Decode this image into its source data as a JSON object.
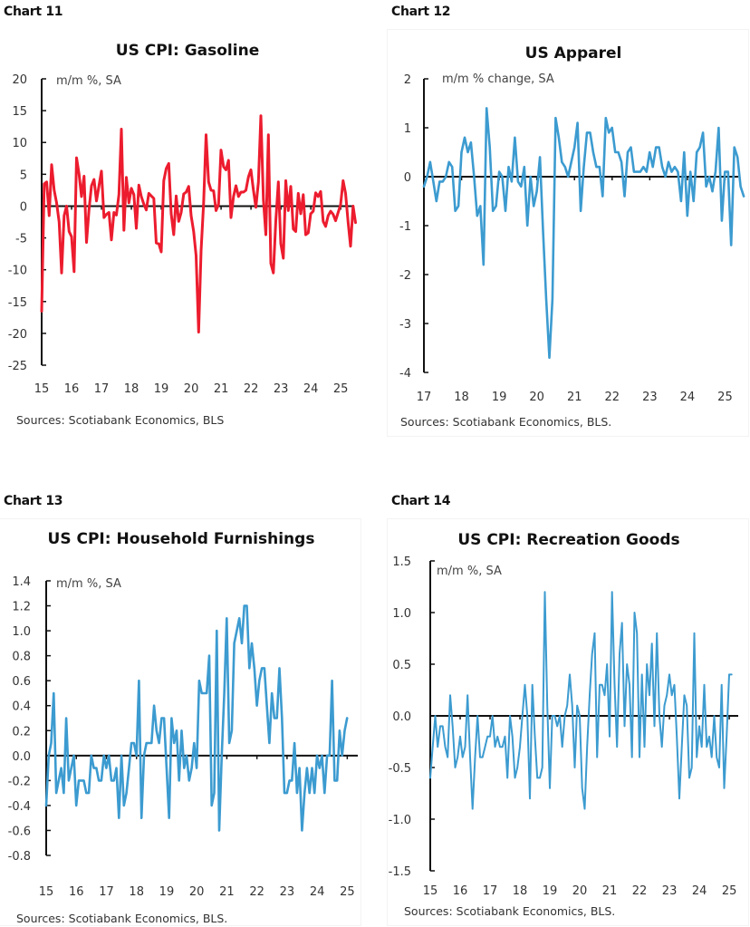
{
  "chart_data": [
    {
      "id": "chart11",
      "label": "Chart 11",
      "type": "line",
      "title": "US CPI: Gasoline",
      "unit_label": "m/m %, SA",
      "source": "Sources: Scotiabank Economics, BLS",
      "color": "#EC1C2E",
      "x_start": 2015.0,
      "x_step": 0.0833,
      "xlim": [
        2015,
        2025.45
      ],
      "x_ticks": [
        "15",
        "16",
        "17",
        "18",
        "19",
        "20",
        "21",
        "22",
        "23",
        "24",
        "25"
      ],
      "ylim": [
        -25,
        20
      ],
      "y_ticks": [
        "20",
        "15",
        "10",
        "5",
        "0",
        "-5",
        "-10",
        "-15",
        "-20",
        "-25"
      ],
      "y_tick_values": [
        20,
        15,
        10,
        5,
        0,
        -5,
        -10,
        -15,
        -20,
        -25
      ],
      "values": [
        -16.5,
        3.5,
        3.8,
        -1.5,
        6.5,
        2.5,
        0.5,
        -2.5,
        -10.5,
        -1.5,
        0,
        -4,
        -4.8,
        -10.3,
        7.6,
        5,
        1.5,
        4.7,
        -5.7,
        -0.5,
        3.2,
        4.2,
        0.8,
        3.2,
        5.5,
        -1.8,
        -1.3,
        -1,
        -5.3,
        -1,
        -1.4,
        1.8,
        12.1,
        -3.8,
        4.5,
        0.5,
        2.8,
        1.8,
        -3.5,
        3.3,
        1.5,
        0.3,
        -0.6,
        2,
        1.6,
        1.2,
        -5.8,
        -5.9,
        -7.2,
        4,
        5.9,
        6.7,
        -1.2,
        -4.5,
        1.6,
        -2.4,
        -1,
        1.9,
        2.2,
        3.1,
        -1.5,
        -4,
        -7.8,
        -19.8,
        -7,
        0.5,
        11.2,
        3.8,
        2.5,
        2.4,
        -0.7,
        0.3,
        8.8,
        6.2,
        5.7,
        7.2,
        -1.8,
        1.5,
        3.2,
        1.5,
        2.2,
        2.2,
        2.5,
        4.6,
        5.7,
        2.5,
        -0.2,
        3.8,
        14.2,
        1,
        -4.5,
        11.2,
        -9,
        -10.5,
        -2.3,
        3.8,
        -5.9,
        -8.2,
        4,
        -0.7,
        3.1,
        -3.6,
        -4,
        2,
        -1.2,
        1.8,
        -4.5,
        -4.2,
        -1.2,
        -0.8,
        2.1,
        1.5,
        2.3,
        -2.4,
        -3.2,
        -1.5,
        -0.8,
        -1.3,
        -2.3,
        -1,
        0.2,
        4,
        2,
        -2.5,
        -6.3,
        0,
        -2.6
      ]
    },
    {
      "id": "chart12",
      "label": "Chart 12",
      "type": "line",
      "title": "US Apparel",
      "unit_label": "m/m % change, SA",
      "source": "Sources: Scotiabank Economics, BLS.",
      "color": "#3C9BD0",
      "x_start": 2017.0,
      "x_step": 0.0833,
      "xlim": [
        2017,
        2025.35
      ],
      "x_ticks": [
        "17",
        "18",
        "19",
        "20",
        "21",
        "22",
        "23",
        "24",
        "25"
      ],
      "ylim": [
        -4,
        2
      ],
      "y_ticks": [
        "2",
        "1",
        "0",
        "-1",
        "-2",
        "-3",
        "-4"
      ],
      "y_tick_values": [
        2,
        1,
        0,
        -1,
        -2,
        -3,
        -4
      ],
      "values": [
        -0.2,
        0,
        0.3,
        -0.1,
        -0.5,
        -0.1,
        -0.1,
        0,
        0.3,
        0.2,
        -0.7,
        -0.6,
        0.5,
        0.8,
        0.5,
        0.7,
        0,
        -0.8,
        -0.6,
        -1.8,
        1.4,
        0.6,
        -0.7,
        -0.6,
        0.1,
        0,
        -0.7,
        0.2,
        -0.1,
        0.8,
        -0.1,
        -0.2,
        0.2,
        -1,
        0,
        -0.6,
        -0.3,
        0.4,
        -1.1,
        -2.5,
        -3.7,
        -2.5,
        1.2,
        0.8,
        0.3,
        0.2,
        0,
        0.3,
        0.6,
        1.1,
        -0.7,
        0.2,
        0.9,
        0.9,
        0.5,
        0.2,
        0.2,
        -0.4,
        1.2,
        0.9,
        1,
        0.5,
        0.5,
        0.3,
        -0.4,
        0.5,
        0.6,
        0.1,
        0.1,
        0.1,
        0.2,
        0.1,
        0.5,
        0.2,
        0.6,
        0.6,
        0.2,
        0,
        0.3,
        0.1,
        0.2,
        0.1,
        -0.5,
        0.5,
        -0.8,
        0.1,
        -0.5,
        0.5,
        0.6,
        0.9,
        -0.2,
        0,
        -0.3,
        0.1,
        1,
        -0.9,
        0.1,
        0.1,
        -1.4,
        0.6,
        0.4,
        -0.2,
        -0.4
      ]
    },
    {
      "id": "chart13",
      "label": "Chart 13",
      "type": "line",
      "title": "US CPI: Household Furnishings",
      "unit_label": "m/m %, SA",
      "source": "Sources: Scotiabank Economics, BLS.",
      "color": "#3C9BD0",
      "x_start": 2015.0,
      "x_step": 0.0833,
      "xlim": [
        2015,
        2025.35
      ],
      "x_ticks": [
        "15",
        "16",
        "17",
        "18",
        "19",
        "20",
        "21",
        "22",
        "23",
        "24",
        "25"
      ],
      "ylim": [
        -0.8,
        1.4
      ],
      "y_ticks": [
        "1.4",
        "1.2",
        "1.0",
        "0.8",
        "0.6",
        "0.4",
        "0.2",
        "0.0",
        "-0.2",
        "-0.4",
        "-0.6",
        "-0.8"
      ],
      "y_tick_values": [
        1.4,
        1.2,
        1.0,
        0.8,
        0.6,
        0.4,
        0.2,
        0,
        -0.2,
        -0.4,
        -0.6,
        -0.8
      ],
      "values": [
        -0.4,
        0,
        0.1,
        0.5,
        -0.3,
        -0.2,
        -0.1,
        -0.3,
        0.3,
        -0.2,
        -0.1,
        0,
        -0.4,
        -0.2,
        -0.2,
        -0.2,
        -0.3,
        -0.3,
        0,
        -0.1,
        -0.1,
        -0.2,
        -0.2,
        0,
        -0.1,
        0,
        -0.2,
        -0.2,
        -0.1,
        -0.5,
        0,
        -0.4,
        -0.3,
        -0.1,
        0.1,
        0.1,
        0,
        0.6,
        -0.5,
        0,
        0.1,
        0.1,
        0.1,
        0.4,
        0.2,
        0.1,
        0.3,
        0.3,
        -0.1,
        -0.5,
        0.3,
        0.1,
        0.2,
        -0.2,
        0.2,
        -0.1,
        0,
        -0.2,
        -0.1,
        0.1,
        -0.1,
        0.6,
        0.5,
        0.5,
        0.5,
        0.8,
        -0.4,
        -0.3,
        1,
        -0.6,
        0,
        0.5,
        1.1,
        0.1,
        0.2,
        0.9,
        1.0,
        1.1,
        0.9,
        1.2,
        1.2,
        0.7,
        0.9,
        0.7,
        0.4,
        0.6,
        0.7,
        0.7,
        0.4,
        0.1,
        0.5,
        0.3,
        0.3,
        0.7,
        0.3,
        -0.3,
        -0.3,
        -0.2,
        -0.2,
        0.1,
        -0.3,
        -0.1,
        -0.6,
        -0.3,
        -0.1,
        -0.3,
        -0.1,
        -0.3,
        0,
        -0.1,
        0,
        -0.3,
        0,
        0,
        0.6,
        -0.2,
        -0.2,
        0.2,
        0,
        0.2,
        0.3
      ]
    },
    {
      "id": "chart14",
      "label": "Chart 14",
      "type": "line",
      "title": "US CPI: Recreation Goods",
      "unit_label": "m/m %, SA",
      "source": "Sources: Scotiabank Economics, BLS.",
      "color": "#3C9BD0",
      "x_start": 2015.0,
      "x_step": 0.0833,
      "xlim": [
        2015,
        2025.3
      ],
      "x_ticks": [
        "15",
        "16",
        "17",
        "18",
        "19",
        "20",
        "21",
        "22",
        "23",
        "24",
        "25"
      ],
      "ylim": [
        -1.5,
        1.5
      ],
      "y_ticks": [
        "1.5",
        "1.0",
        "0.5",
        "0.0",
        "-0.5",
        "-1.0",
        "-1.5"
      ],
      "y_tick_values": [
        1.5,
        1.0,
        0.5,
        0,
        -0.5,
        -1.0,
        -1.5
      ],
      "values": [
        -0.6,
        -0.3,
        0,
        -0.3,
        -0.1,
        -0.1,
        -0.3,
        -0.4,
        0.2,
        -0.1,
        -0.5,
        -0.4,
        -0.2,
        -0.4,
        -0.3,
        0.2,
        -0.4,
        -0.9,
        -0.4,
        0,
        -0.4,
        -0.4,
        -0.3,
        -0.2,
        -0.2,
        0,
        -0.3,
        -0.2,
        -0.3,
        -0.3,
        -0.2,
        -0.6,
        0,
        -0.2,
        -0.6,
        -0.5,
        -0.3,
        0,
        0.3,
        0,
        -0.8,
        0.3,
        -0.2,
        -0.6,
        -0.6,
        -0.5,
        1.2,
        0.1,
        -0.7,
        0,
        0,
        -0.1,
        0,
        -0.3,
        0,
        0.1,
        0.4,
        0.1,
        -0.5,
        0.1,
        0,
        -0.7,
        -0.9,
        -0.3,
        0.2,
        0.6,
        0.8,
        -0.4,
        0.3,
        0.3,
        0.2,
        0.5,
        -0.2,
        1.2,
        0.3,
        -0.3,
        0.6,
        0.9,
        -0.1,
        0.5,
        0.3,
        -0.4,
        1.0,
        0.8,
        -0.4,
        0.4,
        -0.3,
        0.5,
        0.2,
        0.7,
        -0.1,
        0.8,
        0,
        -0.3,
        0.1,
        0.2,
        0.4,
        0.2,
        0.3,
        -0.2,
        -0.8,
        -0.3,
        0.2,
        0.1,
        -0.6,
        -0.5,
        0.8,
        -0.4,
        -0.1,
        -0.3,
        0.3,
        -0.3,
        -0.2,
        -0.4,
        0,
        -0.4,
        -0.5,
        0.3,
        -0.7,
        -0.2,
        0.4,
        0.4
      ]
    }
  ]
}
